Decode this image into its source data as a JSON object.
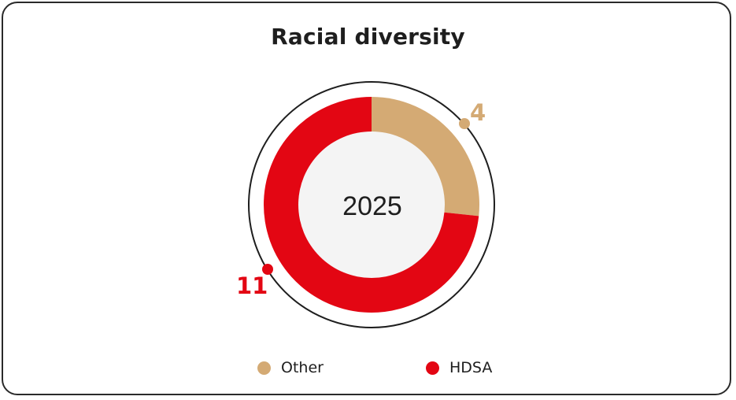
{
  "chart_data": {
    "type": "pie",
    "subtype": "donut",
    "title": "Racial diversity",
    "center_label": "2025",
    "categories": [
      "Other",
      "HDSA"
    ],
    "values": [
      4,
      11
    ],
    "colors": [
      "#d4aa74",
      "#e30613"
    ],
    "legend_position": "bottom"
  },
  "labels": {
    "other_value": "4",
    "hdsa_value": "11"
  },
  "legend": [
    {
      "label": "Other",
      "color": "#d4aa74"
    },
    {
      "label": "HDSA",
      "color": "#e30613"
    }
  ]
}
